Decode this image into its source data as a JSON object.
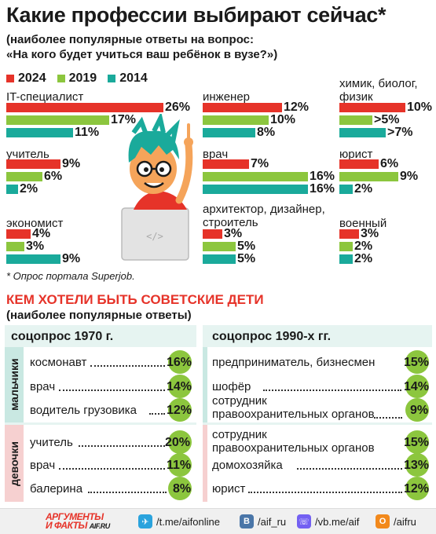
{
  "header": {
    "title": "Какие профессии выбирают сейчас*",
    "subtitle_line1": "(наиболее популярные ответы на вопрос:",
    "subtitle_line2": "«На кого будет учиться ваш ребёнок в вузе?»)"
  },
  "legend": [
    {
      "label": "2024",
      "color": "#e63329"
    },
    {
      "label": "2019",
      "color": "#8cc63e"
    },
    {
      "label": "2014",
      "color": "#1aaa9b"
    }
  ],
  "chart_data": {
    "type": "bar",
    "title": "Какие профессии выбирают сейчас*",
    "series_names": [
      "2024",
      "2019",
      "2014"
    ],
    "categories": [
      {
        "name": "IT-специалист",
        "values": [
          26,
          17,
          11
        ],
        "labels": [
          "26%",
          "17%",
          "11%"
        ]
      },
      {
        "name": "инженер",
        "values": [
          12,
          10,
          8
        ],
        "labels": [
          "12%",
          "10%",
          "8%"
        ]
      },
      {
        "name": "химик, биолог, физик",
        "values": [
          10,
          5,
          7
        ],
        "labels": [
          "10%",
          ">5%",
          ">7%"
        ]
      },
      {
        "name": "учитель",
        "values": [
          9,
          6,
          2
        ],
        "labels": [
          "9%",
          "6%",
          "2%"
        ]
      },
      {
        "name": "врач",
        "values": [
          7,
          16,
          16
        ],
        "labels": [
          "7%",
          "16%",
          "16%"
        ]
      },
      {
        "name": "юрист",
        "values": [
          6,
          9,
          2
        ],
        "labels": [
          "6%",
          "9%",
          "2%"
        ]
      },
      {
        "name": "экономист",
        "values": [
          4,
          3,
          9
        ],
        "labels": [
          "4%",
          "3%",
          "9%"
        ]
      },
      {
        "name": "архитектор, дизайнер, строитель",
        "values": [
          3,
          5,
          5
        ],
        "labels": [
          "3%",
          "5%",
          "5%"
        ]
      },
      {
        "name": "военный",
        "values": [
          3,
          2,
          2
        ],
        "labels": [
          "3%",
          "2%",
          "2%"
        ]
      }
    ]
  },
  "footnote": "* Опрос портала Superjob.",
  "soviet": {
    "title": "КЕМ ХОТЕЛИ БЫТЬ СОВЕТСКИЕ ДЕТИ",
    "subtitle": "(наиболее популярные ответы)",
    "left_header": "соцопрос 1970 г.",
    "right_header": "соцопрос 1990-х гг.",
    "boys_label": "мальчики",
    "girls_label": "девочки",
    "left_boys": [
      {
        "label": "космонавт",
        "pct": "16%"
      },
      {
        "label": "врач",
        "pct": "14%"
      },
      {
        "label": "водитель грузовика",
        "pct": "12%"
      }
    ],
    "left_girls": [
      {
        "label": "учитель",
        "pct": "20%"
      },
      {
        "label": "врач",
        "pct": "11%"
      },
      {
        "label": "балерина",
        "pct": "8%"
      }
    ],
    "right_boys": [
      {
        "label": "предприниматель, бизнесмен",
        "pct": "15%"
      },
      {
        "label": "шофёр",
        "pct": "14%"
      },
      {
        "label_line1": "сотрудник",
        "label_line2": "правоохранительных органов",
        "pct": "9%"
      }
    ],
    "right_girls": [
      {
        "label_line1": "сотрудник",
        "label_line2": "правоохранительных органов",
        "pct": "15%"
      },
      {
        "label": "домохозяйка",
        "pct": "13%"
      },
      {
        "label": "юрист",
        "pct": "12%"
      }
    ]
  },
  "footer": {
    "logo_line1": "АРГУМЕНТЫ",
    "logo_line2": "И ФАКТЫ",
    "logo_site": "AIF.RU",
    "links": [
      {
        "icon": "telegram-icon",
        "text": "/t.me/aifonline",
        "color": "#2aa3dd"
      },
      {
        "icon": "vk-icon",
        "text": "/aif_ru",
        "color": "#4a76a8"
      },
      {
        "icon": "viber-icon",
        "text": "/vb.me/aif",
        "color": "#7360f2"
      },
      {
        "icon": "ok-icon",
        "text": "/aifru",
        "color": "#f2891c"
      }
    ]
  }
}
